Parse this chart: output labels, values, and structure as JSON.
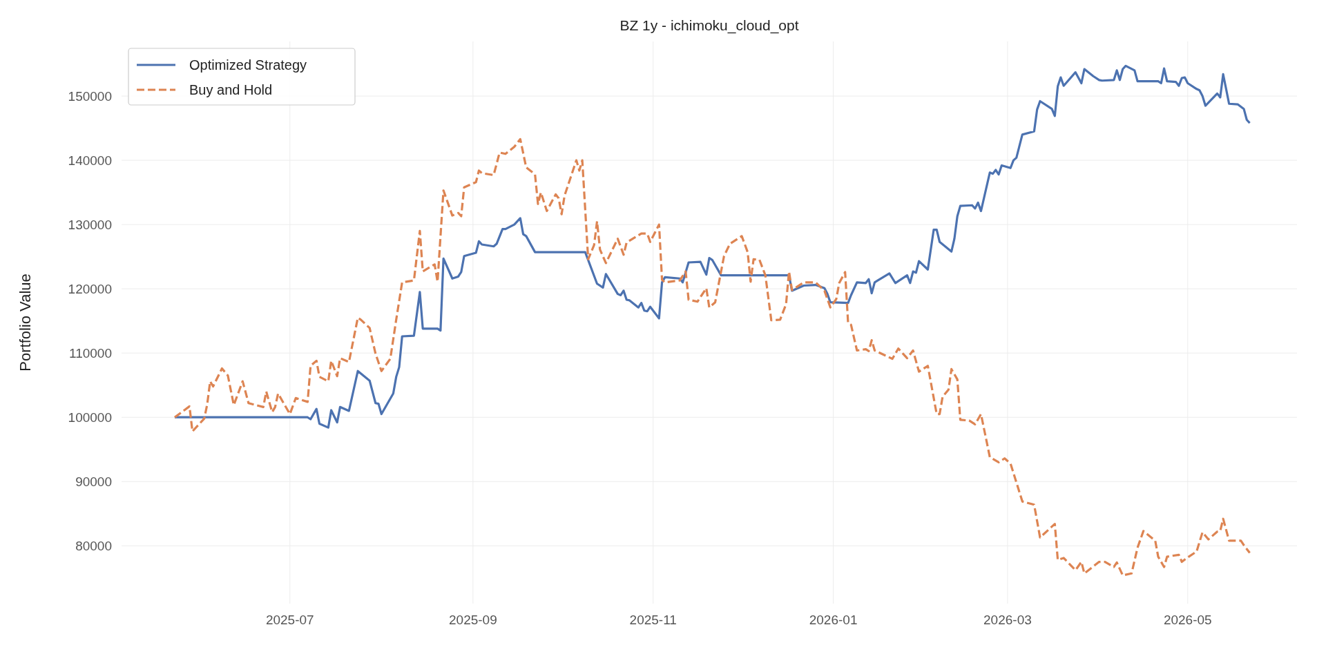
{
  "chart_data": {
    "type": "line",
    "title": "BZ 1y - ichimoku_cloud_opt",
    "ylabel": "Portfolio Value",
    "xlim": [
      "2025-05-05",
      "2026-06-07"
    ],
    "ylim": [
      71000,
      158500
    ],
    "xticks": [
      {
        "value": "2025-07",
        "label": "2025-07"
      },
      {
        "value": "2025-09",
        "label": "2025-09"
      },
      {
        "value": "2025-11",
        "label": "2025-11"
      },
      {
        "value": "2026-01",
        "label": "2026-01"
      },
      {
        "value": "2026-03",
        "label": "2026-03"
      },
      {
        "value": "2026-05",
        "label": "2026-05"
      }
    ],
    "yticks": [
      80000,
      90000,
      100000,
      110000,
      120000,
      130000,
      140000,
      150000
    ],
    "grid": true,
    "legend": "top left",
    "series": [
      {
        "name": "Optimized Strategy",
        "color": "#4c72b0",
        "line_style": "solid",
        "x": [
          "2025-05-23",
          "2025-07-07",
          "2025-07-08",
          "2025-07-10",
          "2025-07-11",
          "2025-07-14",
          "2025-07-15",
          "2025-07-17",
          "2025-07-18",
          "2025-07-21",
          "2025-07-24",
          "2025-07-28",
          "2025-07-30",
          "2025-07-31",
          "2025-08-01",
          "2025-08-05",
          "2025-08-06",
          "2025-08-07",
          "2025-08-08",
          "2025-08-12",
          "2025-08-14",
          "2025-08-15",
          "2025-08-20",
          "2025-08-21",
          "2025-08-22",
          "2025-08-25",
          "2025-08-27",
          "2025-08-28",
          "2025-08-29",
          "2025-09-02",
          "2025-09-03",
          "2025-09-04",
          "2025-09-08",
          "2025-09-09",
          "2025-09-11",
          "2025-09-12",
          "2025-09-15",
          "2025-09-17",
          "2025-09-18",
          "2025-09-19",
          "2025-09-22",
          "2025-10-09",
          "2025-10-13",
          "2025-10-15",
          "2025-10-16",
          "2025-10-20",
          "2025-10-21",
          "2025-10-22",
          "2025-10-23",
          "2025-10-24",
          "2025-10-27",
          "2025-10-28",
          "2025-10-29",
          "2025-10-30",
          "2025-10-31",
          "2025-11-03",
          "2025-11-04",
          "2025-11-05",
          "2025-11-10",
          "2025-11-11",
          "2025-11-13",
          "2025-11-17",
          "2025-11-19",
          "2025-11-20",
          "2025-11-21",
          "2025-11-24",
          "2025-12-17",
          "2025-12-18",
          "2025-12-22",
          "2025-12-26",
          "2025-12-29",
          "2025-12-30",
          "2025-12-31",
          "2026-01-06",
          "2026-01-07",
          "2026-01-09",
          "2026-01-12",
          "2026-01-13",
          "2026-01-14",
          "2026-01-15",
          "2026-01-20",
          "2026-01-22",
          "2026-01-26",
          "2026-01-27",
          "2026-01-28",
          "2026-01-29",
          "2026-01-30",
          "2026-02-02",
          "2026-02-04",
          "2026-02-05",
          "2026-02-06",
          "2026-02-10",
          "2026-02-11",
          "2026-02-12",
          "2026-02-13",
          "2026-02-17",
          "2026-02-18",
          "2026-02-19",
          "2026-02-20",
          "2026-02-23",
          "2026-02-24",
          "2026-02-25",
          "2026-02-26",
          "2026-02-27",
          "2026-03-02",
          "2026-03-03",
          "2026-03-04",
          "2026-03-06",
          "2026-03-10",
          "2026-03-11",
          "2026-03-12",
          "2026-03-16",
          "2026-03-17",
          "2026-03-18",
          "2026-03-19",
          "2026-03-20",
          "2026-03-24",
          "2026-03-26",
          "2026-03-27",
          "2026-03-30",
          "2026-04-01",
          "2026-04-02",
          "2026-04-06",
          "2026-04-07",
          "2026-04-08",
          "2026-04-09",
          "2026-04-10",
          "2026-04-13",
          "2026-04-14",
          "2026-04-21",
          "2026-04-22",
          "2026-04-23",
          "2026-04-24",
          "2026-04-27",
          "2026-04-28",
          "2026-04-29",
          "2026-04-30",
          "2026-05-01",
          "2026-05-04",
          "2026-05-05",
          "2026-05-06",
          "2026-05-07",
          "2026-05-11",
          "2026-05-12",
          "2026-05-13",
          "2026-05-15",
          "2026-05-18",
          "2026-05-20",
          "2026-05-21",
          "2026-05-22"
        ],
        "values": [
          100000,
          100000,
          99700,
          101300,
          99000,
          98400,
          101100,
          99200,
          101600,
          101000,
          107200,
          105700,
          102200,
          102100,
          100500,
          103700,
          106300,
          107800,
          112600,
          112700,
          119500,
          113800,
          113800,
          113500,
          124700,
          121600,
          121900,
          122600,
          125100,
          125600,
          127400,
          126900,
          126600,
          127000,
          129300,
          129300,
          130000,
          131000,
          128500,
          128200,
          125700,
          125700,
          120800,
          120200,
          122300,
          119200,
          119000,
          119700,
          118300,
          118200,
          117100,
          117800,
          116600,
          116500,
          117200,
          115400,
          121000,
          121800,
          121600,
          121000,
          124100,
          124200,
          122200,
          124800,
          124500,
          122100,
          122100,
          119700,
          120500,
          120600,
          120100,
          119200,
          117900,
          117800,
          119000,
          121000,
          120900,
          121500,
          119300,
          121000,
          122400,
          120900,
          122100,
          120900,
          122700,
          122500,
          124300,
          123000,
          129200,
          129200,
          127300,
          125800,
          127800,
          131300,
          132900,
          133000,
          132500,
          133400,
          132100,
          138100,
          137900,
          138500,
          137800,
          139200,
          138800,
          140000,
          140400,
          144000,
          144500,
          147900,
          149200,
          148000,
          146900,
          151500,
          152900,
          151600,
          153700,
          152000,
          154200,
          153100,
          152500,
          152400,
          152500,
          154000,
          152500,
          154200,
          154700,
          154000,
          152300,
          152300,
          152000,
          154300,
          152300,
          152200,
          151600,
          152800,
          152900,
          152000,
          151100,
          150900,
          150000,
          148500,
          150400,
          149800,
          153400,
          148800,
          148700,
          148000,
          146300,
          145800
        ]
      },
      {
        "name": "Buy and Hold",
        "color": "#dd8452",
        "line_style": "dashed",
        "x": [
          "2025-05-23",
          "2025-05-28",
          "2025-05-29",
          "2025-06-02",
          "2025-06-03",
          "2025-06-04",
          "2025-06-05",
          "2025-06-08",
          "2025-06-10",
          "2025-06-12",
          "2025-06-15",
          "2025-06-17",
          "2025-06-22",
          "2025-06-23",
          "2025-06-25",
          "2025-06-26",
          "2025-06-27",
          "2025-07-01",
          "2025-07-03",
          "2025-07-07",
          "2025-07-08",
          "2025-07-10",
          "2025-07-11",
          "2025-07-14",
          "2025-07-15",
          "2025-07-17",
          "2025-07-18",
          "2025-07-21",
          "2025-07-24",
          "2025-07-25",
          "2025-07-28",
          "2025-07-30",
          "2025-08-01",
          "2025-08-04",
          "2025-08-06",
          "2025-08-08",
          "2025-08-12",
          "2025-08-14",
          "2025-08-15",
          "2025-08-19",
          "2025-08-20",
          "2025-08-22",
          "2025-08-25",
          "2025-08-27",
          "2025-08-28",
          "2025-08-29",
          "2025-09-02",
          "2025-09-03",
          "2025-09-04",
          "2025-09-08",
          "2025-09-10",
          "2025-09-12",
          "2025-09-15",
          "2025-09-17",
          "2025-09-19",
          "2025-09-22",
          "2025-09-23",
          "2025-09-24",
          "2025-09-26",
          "2025-09-29",
          "2025-09-30",
          "2025-10-01",
          "2025-10-02",
          "2025-10-06",
          "2025-10-07",
          "2025-10-08",
          "2025-10-10",
          "2025-10-12",
          "2025-10-13",
          "2025-10-14",
          "2025-10-16",
          "2025-10-20",
          "2025-10-22",
          "2025-10-23",
          "2025-10-28",
          "2025-10-30",
          "2025-10-31",
          "2025-11-03",
          "2025-11-04",
          "2025-11-05",
          "2025-11-10",
          "2025-11-12",
          "2025-11-13",
          "2025-11-16",
          "2025-11-19",
          "2025-11-20",
          "2025-11-22",
          "2025-11-25",
          "2025-11-27",
          "2025-12-01",
          "2025-12-03",
          "2025-12-04",
          "2025-12-05",
          "2025-12-07",
          "2025-12-09",
          "2025-12-11",
          "2025-12-14",
          "2025-12-16",
          "2025-12-17",
          "2025-12-18",
          "2025-12-22",
          "2025-12-26",
          "2025-12-29",
          "2025-12-31",
          "2026-01-02",
          "2026-01-03",
          "2026-01-05",
          "2026-01-06",
          "2026-01-07",
          "2026-01-09",
          "2026-01-12",
          "2026-01-13",
          "2026-01-14",
          "2026-01-15",
          "2026-01-21",
          "2026-01-23",
          "2026-01-26",
          "2026-01-28",
          "2026-01-30",
          "2026-02-02",
          "2026-02-05",
          "2026-02-06",
          "2026-02-07",
          "2026-02-09",
          "2026-02-10",
          "2026-02-12",
          "2026-02-13",
          "2026-02-16",
          "2026-02-18",
          "2026-02-20",
          "2026-02-23",
          "2026-02-26",
          "2026-02-28",
          "2026-03-02",
          "2026-03-06",
          "2026-03-10",
          "2026-03-12",
          "2026-03-17",
          "2026-03-18",
          "2026-03-20",
          "2026-03-24",
          "2026-03-26",
          "2026-03-27",
          "2026-04-01",
          "2026-04-03",
          "2026-04-06",
          "2026-04-07",
          "2026-04-09",
          "2026-04-12",
          "2026-04-14",
          "2026-04-16",
          "2026-04-20",
          "2026-04-21",
          "2026-04-23",
          "2026-04-24",
          "2026-04-28",
          "2026-04-29",
          "2026-05-01",
          "2026-05-04",
          "2026-05-06",
          "2026-05-08",
          "2026-05-11",
          "2026-05-12",
          "2026-05-13",
          "2026-05-15",
          "2026-05-19",
          "2026-05-20",
          "2026-05-22"
        ],
        "values": [
          100000,
          101700,
          97800,
          99800,
          102000,
          105600,
          104800,
          107600,
          106500,
          101900,
          105600,
          102200,
          101600,
          104000,
          100800,
          101600,
          103700,
          100500,
          103000,
          102400,
          108000,
          108800,
          106300,
          105600,
          108800,
          106400,
          109200,
          108600,
          115500,
          115200,
          113900,
          109900,
          107200,
          109100,
          115200,
          121000,
          121300,
          129000,
          122700,
          123800,
          121100,
          135300,
          131400,
          131800,
          131300,
          135800,
          136600,
          138400,
          138000,
          137700,
          141200,
          141000,
          142100,
          143300,
          138900,
          137800,
          133200,
          135000,
          132100,
          134700,
          134100,
          131600,
          134500,
          140000,
          138400,
          140000,
          124600,
          126800,
          130500,
          126100,
          124000,
          127800,
          125300,
          127200,
          128600,
          128600,
          127300,
          130000,
          121400,
          121000,
          121300,
          122700,
          118300,
          118000,
          120100,
          117100,
          117900,
          125100,
          127000,
          128200,
          125700,
          121100,
          124600,
          124500,
          122100,
          115100,
          115200,
          117600,
          122700,
          119800,
          121000,
          121000,
          119700,
          117100,
          118400,
          120900,
          122600,
          114700,
          114400,
          110400,
          110600,
          110300,
          112000,
          110400,
          109100,
          110700,
          109200,
          110400,
          107100,
          108000,
          100500,
          100500,
          103200,
          104300,
          107500,
          105900,
          99600,
          99500,
          98900,
          100500,
          93800,
          93000,
          93600,
          92800,
          86900,
          86400,
          81300,
          83400,
          77800,
          78100,
          76200,
          77500,
          75700,
          77500,
          77500,
          76700,
          77400,
          75400,
          75700,
          79700,
          82300,
          80800,
          78300,
          76700,
          78300,
          78600,
          77500,
          78200,
          79100,
          82100,
          81000,
          82200,
          82300,
          84200,
          80800,
          80800,
          80100,
          78900
        ]
      }
    ]
  }
}
